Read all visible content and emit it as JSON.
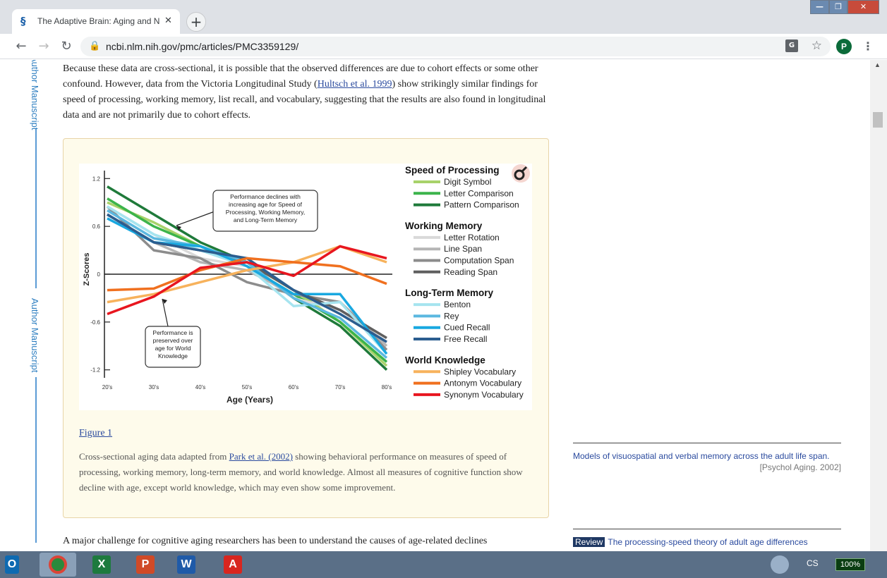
{
  "browser": {
    "tab_title": "The Adaptive Brain: Aging and N",
    "tab_close": "✕",
    "new_tab": "+",
    "url": "ncbi.nlm.nih.gov/pmc/articles/PMC3359129/",
    "avatar_letter": "P",
    "window_buttons": [
      "—",
      "❐",
      "✕"
    ]
  },
  "sidebar": {
    "label_top": "Author Manuscript",
    "label_mid": "Author Manuscript"
  },
  "article": {
    "para1_pre": "Because these data are cross-sectional, it is possible that the observed differences are due to cohort effects or some other confound. However, data from the Victoria Longitudinal Study (",
    "para1_link": "Hultsch et al. 1999",
    "para1_post": ") show strikingly similar findings for speed of processing, working memory, list recall, and vocabulary, suggesting that the results are also found in longitudinal data and are not primarily due to cohort effects.",
    "para2": "A major challenge for cognitive aging researchers has been to understand the causes of age-related declines",
    "figure_link": "Figure 1",
    "caption_pre": "Cross-sectional aging data adapted from ",
    "caption_link": "Park et al. (2002)",
    "caption_post": " showing behavioral performance on measures of speed of processing, working memory, long-term memory, and world knowledge. Almost all measures of cognitive function show decline with age, except world knowledge, which may even show some improvement."
  },
  "related": {
    "item1_title": "Models of visuospatial and verbal memory across the adult life span.",
    "item1_source": "[Psychol Aging. 2002]",
    "item2_badge": "Review",
    "item2_title": "The processing-speed theory of adult age differences"
  },
  "taskbar": {
    "apps": [
      "outlook",
      "chrome",
      "excel",
      "powerpoint",
      "word",
      "acrobat"
    ],
    "lang": "CS",
    "battery": "100%"
  },
  "chart_data": {
    "type": "line",
    "xlabel": "Age (Years)",
    "ylabel": "Z-Scores",
    "categories": [
      "20's",
      "30's",
      "40's",
      "50's",
      "60's",
      "70's",
      "80's"
    ],
    "ylim": [
      -1.3,
      1.3
    ],
    "yticks": [
      "1.2",
      "0.6",
      "0",
      "-0.6",
      "-1.2"
    ],
    "ytick_values": [
      1.2,
      0.6,
      0,
      -0.6,
      -1.2
    ],
    "annotation1": [
      "Performance declines with",
      "increasing age for Speed of",
      "Processing, Working Memory,",
      "and Long-Term Memory"
    ],
    "annotation2": [
      "Performance is",
      "preserved over",
      "age for World",
      "Knowledge"
    ],
    "groups": [
      {
        "name": "Speed of Processing",
        "series": [
          {
            "name": "Digit Symbol",
            "color": "#a8d26a",
            "values": [
              0.9,
              0.65,
              0.35,
              0.15,
              -0.2,
              -0.6,
              -1.15
            ]
          },
          {
            "name": "Letter Comparison",
            "color": "#3cb44b",
            "values": [
              0.95,
              0.6,
              0.35,
              0.1,
              -0.25,
              -0.6,
              -1.1
            ]
          },
          {
            "name": "Pattern Comparison",
            "color": "#1f7a3a",
            "values": [
              1.1,
              0.75,
              0.4,
              0.15,
              -0.3,
              -0.65,
              -1.2
            ]
          }
        ]
      },
      {
        "name": "Working Memory",
        "series": [
          {
            "name": "Letter Rotation",
            "color": "#d9d9d9",
            "values": [
              0.85,
              0.5,
              0.2,
              0.1,
              -0.3,
              -0.45,
              -0.85
            ]
          },
          {
            "name": "Line Span",
            "color": "#b5b5b5",
            "values": [
              0.75,
              0.4,
              0.15,
              0.05,
              -0.25,
              -0.35,
              -0.9
            ]
          },
          {
            "name": "Computation Span",
            "color": "#8c8c8c",
            "values": [
              0.85,
              0.3,
              0.2,
              -0.1,
              -0.25,
              -0.35,
              -0.95
            ]
          },
          {
            "name": "Reading Span",
            "color": "#5f5f5f",
            "values": [
              0.75,
              0.4,
              0.3,
              0.15,
              -0.2,
              -0.45,
              -0.8
            ]
          }
        ]
      },
      {
        "name": "Long-Term Memory",
        "series": [
          {
            "name": "Benton",
            "color": "#a6e4ef",
            "values": [
              0.85,
              0.5,
              0.3,
              0.1,
              -0.4,
              -0.35,
              -1.0
            ]
          },
          {
            "name": "Rey",
            "color": "#5bb8e0",
            "values": [
              0.8,
              0.45,
              0.35,
              0.15,
              -0.3,
              -0.55,
              -1.05
            ]
          },
          {
            "name": "Cued Recall",
            "color": "#19a8e0",
            "values": [
              0.7,
              0.4,
              0.35,
              0.1,
              -0.25,
              -0.25,
              -1.0
            ]
          },
          {
            "name": "Free Recall",
            "color": "#2b5d8f",
            "values": [
              0.75,
              0.4,
              0.3,
              0.2,
              -0.2,
              -0.5,
              -0.85
            ]
          }
        ]
      },
      {
        "name": "World Knowledge",
        "series": [
          {
            "name": "Shipley Vocabulary",
            "color": "#f7b25c",
            "values": [
              -0.35,
              -0.25,
              -0.1,
              0.05,
              0.15,
              0.35,
              0.15
            ]
          },
          {
            "name": "Antonym Vocabulary",
            "color": "#f0701f",
            "values": [
              -0.2,
              -0.18,
              0.05,
              0.2,
              0.15,
              0.1,
              -0.12
            ]
          },
          {
            "name": "Synonym Vocabulary",
            "color": "#e8161f",
            "values": [
              -0.5,
              -0.28,
              0.08,
              0.15,
              -0.02,
              0.35,
              0.2
            ]
          }
        ]
      }
    ]
  }
}
